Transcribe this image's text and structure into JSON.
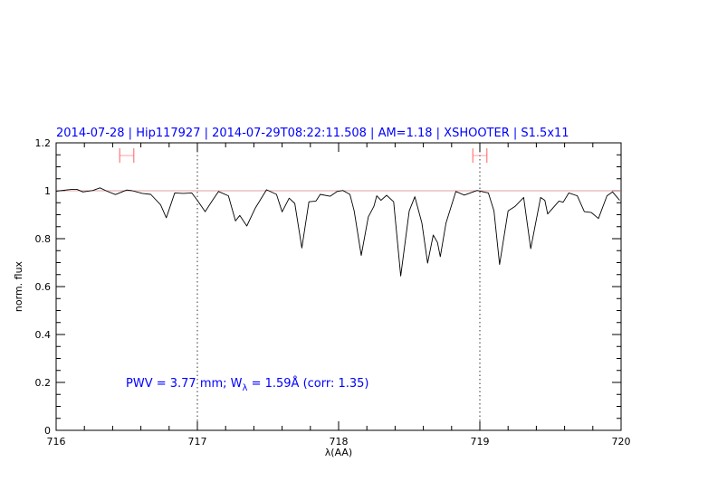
{
  "chart_data": {
    "type": "line",
    "title": "2014-07-28 | Hip117927 | 2014-07-29T08:22:11.508 | AM=1.18 | XSHOOTER | S1.5x11",
    "xlabel": "λ(AA)",
    "ylabel": "norm. flux",
    "xlim": [
      716,
      720
    ],
    "ylim": [
      0,
      1.2
    ],
    "xticks": [
      "716",
      "717",
      "718",
      "719",
      "720"
    ],
    "yticks": [
      "0",
      "0.2",
      "0.4",
      "0.6",
      "0.8",
      "1",
      "1.2"
    ],
    "grid": false,
    "continuum_level": 1.0,
    "vertical_markers": [
      717.0,
      719.0
    ],
    "range_markers": [
      {
        "center": 716.5,
        "half_width": 0.05,
        "y": 1.147
      },
      {
        "center": 719.0,
        "half_width": 0.05,
        "y": 1.147
      }
    ],
    "annotation": {
      "part1": "PWV = 3.77 mm; W",
      "sub": "λ",
      "part2": " = 1.59Å (corr: 1.35)"
    },
    "colors": {
      "spectrum": "#000000",
      "continuum": "#d08080",
      "markers": "#ff6060",
      "text": "#0000ff"
    },
    "series": [
      {
        "x": [
          716.0,
          716.083,
          716.115,
          716.147,
          716.19,
          716.26,
          716.31,
          716.36,
          716.42,
          716.5,
          716.54,
          716.61,
          716.67,
          716.74,
          716.78,
          716.8,
          716.84,
          716.9,
          716.96,
          717.0,
          717.055,
          717.1,
          717.15,
          717.22,
          717.27,
          717.3,
          717.35,
          717.41,
          717.49,
          717.56,
          717.6,
          717.65,
          717.69,
          717.74,
          717.79,
          717.84,
          717.87,
          717.94,
          717.99,
          718.03,
          718.08,
          718.11,
          718.16,
          718.21,
          718.25,
          718.27,
          718.3,
          718.34,
          718.39,
          718.44,
          718.5,
          718.54,
          718.59,
          718.63,
          718.67,
          718.7,
          718.72,
          718.76,
          718.83,
          718.89,
          718.98,
          719.06,
          719.1,
          719.14,
          719.2,
          719.25,
          719.31,
          719.36,
          719.43,
          719.46,
          719.48,
          719.56,
          719.59,
          719.63,
          719.69,
          719.74,
          719.79,
          719.84,
          719.9,
          719.94,
          719.99
        ],
        "y": [
          0.998,
          1.004,
          1.006,
          1.006,
          0.995,
          1.001,
          1.012,
          0.998,
          0.984,
          1.003,
          1.0,
          0.989,
          0.985,
          0.941,
          0.887,
          0.922,
          0.991,
          0.989,
          0.991,
          0.96,
          0.913,
          0.954,
          0.997,
          0.979,
          0.874,
          0.897,
          0.853,
          0.928,
          1.004,
          0.985,
          0.912,
          0.969,
          0.947,
          0.761,
          0.954,
          0.957,
          0.985,
          0.977,
          0.997,
          1.001,
          0.985,
          0.916,
          0.73,
          0.891,
          0.935,
          0.979,
          0.96,
          0.981,
          0.954,
          0.644,
          0.916,
          0.975,
          0.865,
          0.698,
          0.815,
          0.784,
          0.725,
          0.865,
          0.997,
          0.982,
          1.001,
          0.991,
          0.916,
          0.692,
          0.916,
          0.935,
          0.972,
          0.758,
          0.972,
          0.96,
          0.903,
          0.957,
          0.952,
          0.991,
          0.979,
          0.913,
          0.909,
          0.884,
          0.979,
          0.995,
          0.96
        ]
      }
    ]
  }
}
